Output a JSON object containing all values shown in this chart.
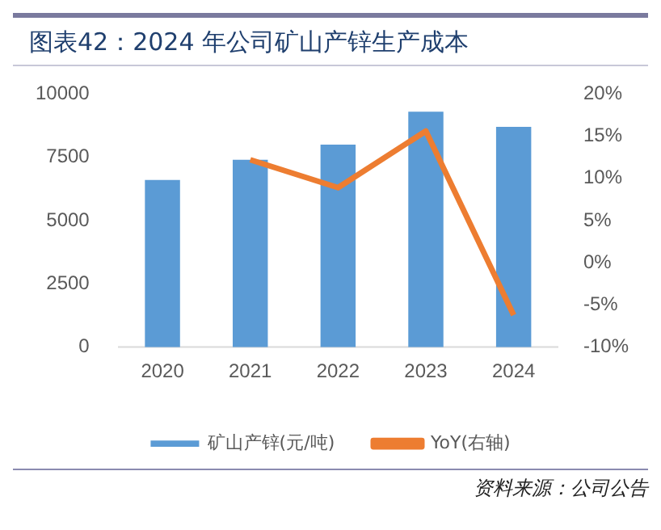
{
  "chart_data": {
    "type": "bar",
    "title": "图表42：2024 年公司矿山产锌生产成本",
    "categories": [
      "2020",
      "2021",
      "2022",
      "2023",
      "2024"
    ],
    "series": [
      {
        "name": "矿山产锌(元/吨)",
        "color": "#5b9bd5",
        "values": [
          6600,
          7400,
          8000,
          9300,
          8700
        ]
      },
      {
        "name": "YoY(右轴)",
        "type": "line",
        "axis": "y2",
        "color": "#ed7d31",
        "values": [
          null,
          12.2,
          8.9,
          15.6,
          -6.2
        ]
      }
    ],
    "ylim": [
      0,
      10000
    ],
    "yticks": [
      0,
      2500,
      5000,
      7500,
      10000
    ],
    "y2lim": [
      -10,
      20
    ],
    "y2ticks": [
      {
        "value": -10,
        "label": "-10%"
      },
      {
        "value": -5,
        "label": "-5%"
      },
      {
        "value": 0,
        "label": "0%"
      },
      {
        "value": 5,
        "label": "5%"
      },
      {
        "value": 10,
        "label": "10%"
      },
      {
        "value": 15,
        "label": "15%"
      },
      {
        "value": 20,
        "label": "20%"
      }
    ],
    "grid": false,
    "legend": "bottom",
    "marker": "none",
    "annotations": [
      "资料来源：公司公告"
    ]
  }
}
